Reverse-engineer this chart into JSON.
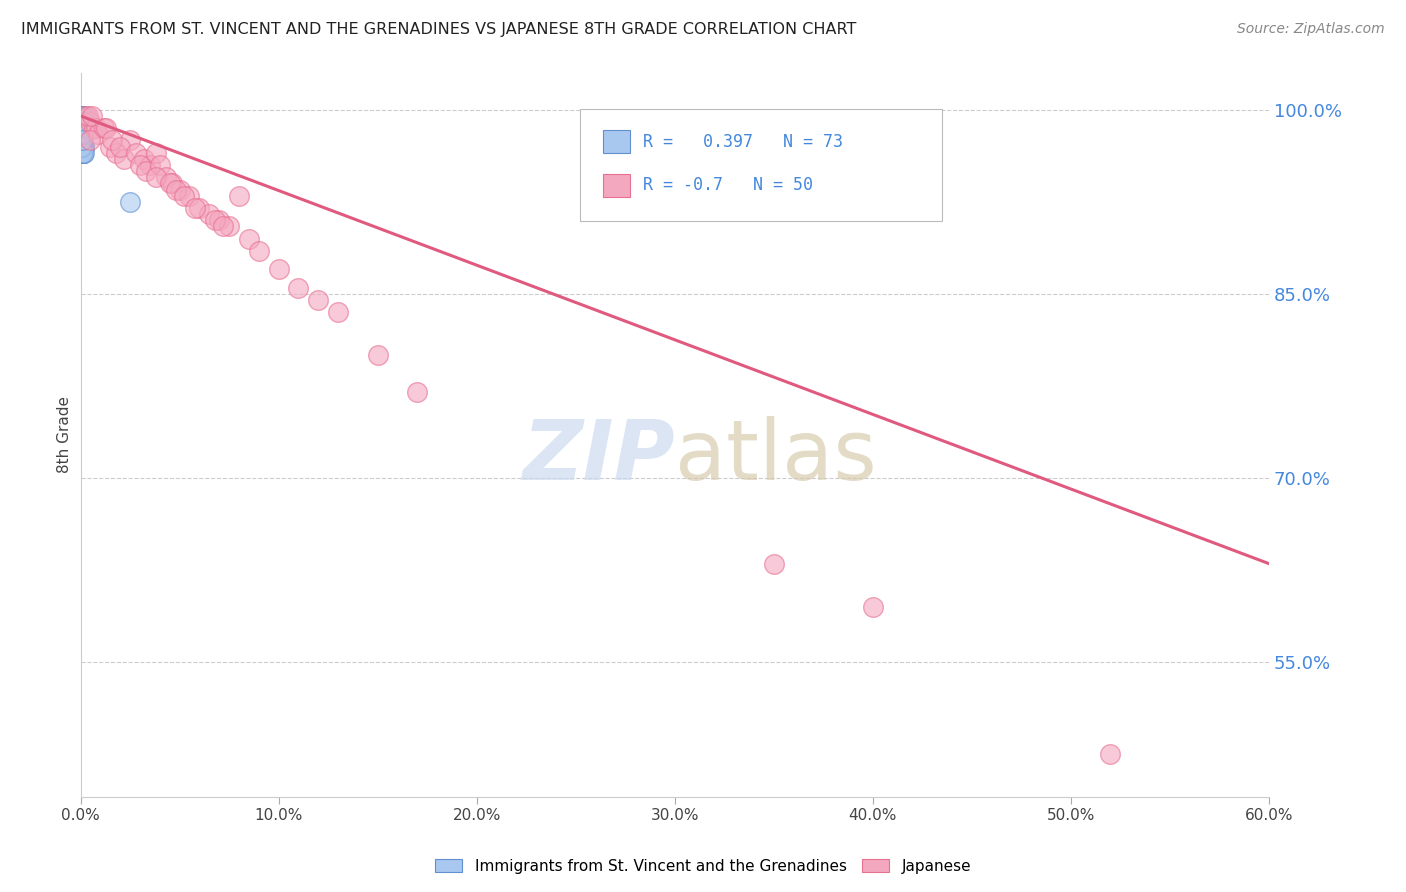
{
  "title": "IMMIGRANTS FROM ST. VINCENT AND THE GRENADINES VS JAPANESE 8TH GRADE CORRELATION CHART",
  "source": "Source: ZipAtlas.com",
  "ylabel": "8th Grade",
  "xlim": [
    0.0,
    0.6
  ],
  "ylim": [
    0.44,
    1.03
  ],
  "xticks": [
    0.0,
    0.1,
    0.2,
    0.3,
    0.4,
    0.5,
    0.6
  ],
  "xticklabels": [
    "0.0%",
    "10.0%",
    "20.0%",
    "30.0%",
    "40.0%",
    "50.0%",
    "60.0%"
  ],
  "yticks_right": [
    0.55,
    0.7,
    0.85,
    1.0
  ],
  "yticklabels_right": [
    "55.0%",
    "70.0%",
    "85.0%",
    "100.0%"
  ],
  "blue_R": 0.397,
  "blue_N": 73,
  "pink_R": -0.7,
  "pink_N": 50,
  "blue_color": "#a8c8f0",
  "pink_color": "#f4a8c0",
  "blue_edge_color": "#6090d0",
  "pink_edge_color": "#e87090",
  "pink_line_color": "#e05a80",
  "blue_line_color": "#6090d0",
  "legend_blue_label": "Immigrants from St. Vincent and the Grenadines",
  "legend_pink_label": "Japanese",
  "blue_scatter_x": [
    0.0005,
    0.001,
    0.0008,
    0.0012,
    0.0006,
    0.0015,
    0.0009,
    0.0007,
    0.0011,
    0.0013,
    0.0004,
    0.0016,
    0.0008,
    0.001,
    0.0006,
    0.0014,
    0.0009,
    0.0007,
    0.0011,
    0.0005,
    0.0013,
    0.0008,
    0.001,
    0.0012,
    0.0006,
    0.0015,
    0.0009,
    0.0007,
    0.0011,
    0.0003,
    0.0016,
    0.0008,
    0.001,
    0.0006,
    0.0014,
    0.0009,
    0.0007,
    0.0011,
    0.0005,
    0.0013,
    0.0008,
    0.001,
    0.0012,
    0.0006,
    0.0015,
    0.0009,
    0.0007,
    0.0011,
    0.0004,
    0.0016,
    0.0008,
    0.001,
    0.0006,
    0.0014,
    0.0009,
    0.0007,
    0.0011,
    0.0005,
    0.0013,
    0.0008,
    0.001,
    0.0012,
    0.0006,
    0.0015,
    0.0009,
    0.0007,
    0.0011,
    0.0004,
    0.0016,
    0.025,
    0.0008,
    0.001,
    0.0006
  ],
  "blue_scatter_y": [
    0.995,
    0.99,
    0.985,
    0.98,
    0.975,
    0.97,
    0.995,
    0.99,
    0.985,
    0.98,
    0.975,
    0.97,
    0.995,
    0.99,
    0.985,
    0.98,
    0.975,
    0.97,
    0.965,
    0.99,
    0.985,
    0.98,
    0.975,
    0.97,
    0.965,
    0.995,
    0.99,
    0.985,
    0.98,
    0.975,
    0.97,
    0.965,
    0.99,
    0.985,
    0.98,
    0.975,
    0.97,
    0.965,
    0.995,
    0.99,
    0.985,
    0.98,
    0.975,
    0.97,
    0.965,
    0.99,
    0.985,
    0.98,
    0.975,
    0.97,
    0.965,
    0.99,
    0.985,
    0.98,
    0.975,
    0.97,
    0.965,
    0.99,
    0.985,
    0.98,
    0.975,
    0.97,
    0.965,
    0.99,
    0.985,
    0.98,
    0.975,
    0.97,
    0.965,
    0.925,
    0.985,
    0.98,
    0.975
  ],
  "pink_scatter_x": [
    0.003,
    0.005,
    0.007,
    0.004,
    0.008,
    0.006,
    0.009,
    0.005,
    0.012,
    0.015,
    0.018,
    0.022,
    0.025,
    0.013,
    0.016,
    0.02,
    0.028,
    0.032,
    0.035,
    0.038,
    0.03,
    0.033,
    0.04,
    0.043,
    0.046,
    0.05,
    0.038,
    0.055,
    0.06,
    0.065,
    0.07,
    0.075,
    0.045,
    0.08,
    0.048,
    0.052,
    0.058,
    0.068,
    0.072,
    0.085,
    0.09,
    0.1,
    0.11,
    0.12,
    0.13,
    0.15,
    0.17,
    0.35,
    0.4,
    0.52
  ],
  "pink_scatter_y": [
    0.995,
    0.99,
    0.985,
    0.995,
    0.985,
    0.995,
    0.98,
    0.975,
    0.985,
    0.97,
    0.965,
    0.96,
    0.975,
    0.985,
    0.975,
    0.97,
    0.965,
    0.96,
    0.955,
    0.965,
    0.955,
    0.95,
    0.955,
    0.945,
    0.94,
    0.935,
    0.945,
    0.93,
    0.92,
    0.915,
    0.91,
    0.905,
    0.94,
    0.93,
    0.935,
    0.93,
    0.92,
    0.91,
    0.905,
    0.895,
    0.885,
    0.87,
    0.855,
    0.845,
    0.835,
    0.8,
    0.77,
    0.63,
    0.595,
    0.475
  ],
  "pink_line_x": [
    0.0,
    0.6
  ],
  "pink_line_y": [
    0.995,
    0.63
  ]
}
